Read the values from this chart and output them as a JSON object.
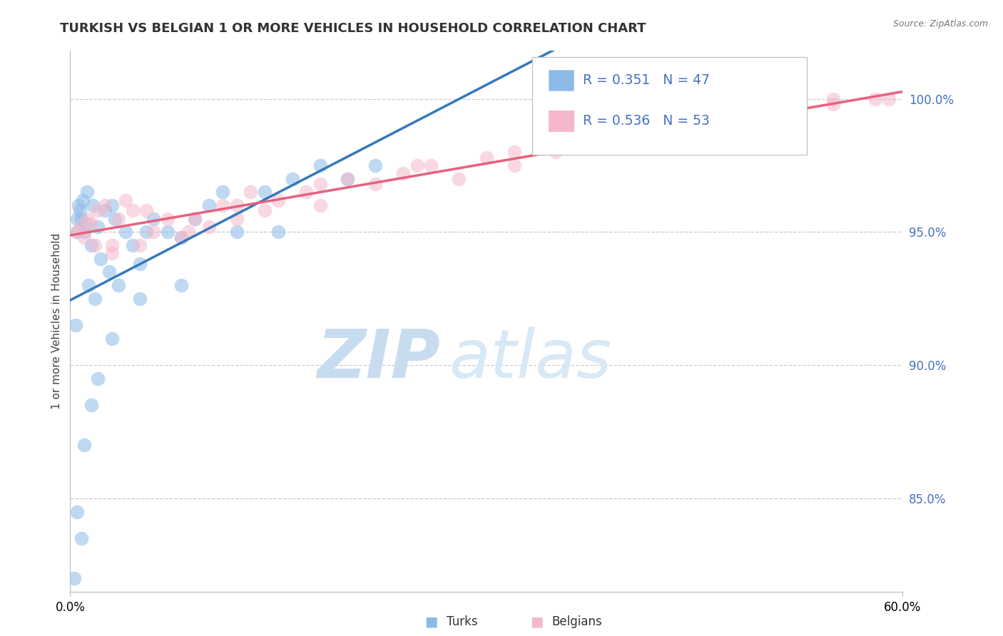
{
  "title": "TURKISH VS BELGIAN 1 OR MORE VEHICLES IN HOUSEHOLD CORRELATION CHART",
  "source": "Source: ZipAtlas.com",
  "ylabel": "1 or more Vehicles in Household",
  "xlim": [
    0.0,
    60.0
  ],
  "ylim": [
    81.5,
    101.8
  ],
  "yticks": [
    85.0,
    90.0,
    95.0,
    100.0
  ],
  "ytick_labels": [
    "85.0%",
    "90.0%",
    "95.0%",
    "100.0%"
  ],
  "legend_blue_r": "R = 0.351",
  "legend_blue_n": "N = 47",
  "legend_pink_r": "R = 0.536",
  "legend_pink_n": "N = 53",
  "turks_label": "Turks",
  "belgians_label": "Belgians",
  "blue_scatter_color": "#8DBBE8",
  "pink_scatter_color": "#F5B8CB",
  "line_blue": "#3579BD",
  "line_pink": "#E8617C",
  "legend_text_color": "#4472C4",
  "title_color": "#333333",
  "source_color": "#777777",
  "watermark_color": "#D8E8F5",
  "yaxis_tick_color": "#4472C4",
  "turks_x": [
    0.3,
    0.4,
    0.5,
    0.5,
    0.6,
    0.7,
    0.8,
    0.9,
    1.0,
    1.1,
    1.2,
    1.3,
    1.5,
    1.6,
    1.8,
    2.0,
    2.2,
    2.5,
    2.8,
    3.0,
    3.2,
    3.5,
    4.0,
    4.5,
    5.0,
    5.5,
    6.0,
    7.0,
    8.0,
    9.0,
    10.0,
    11.0,
    12.0,
    14.0,
    16.0,
    18.0,
    20.0,
    22.0,
    0.5,
    0.8,
    1.0,
    1.5,
    2.0,
    3.0,
    5.0,
    8.0,
    15.0
  ],
  "turks_y": [
    82.0,
    91.5,
    95.0,
    95.5,
    96.0,
    95.8,
    95.5,
    96.2,
    95.0,
    95.3,
    96.5,
    93.0,
    94.5,
    96.0,
    92.5,
    95.2,
    94.0,
    95.8,
    93.5,
    96.0,
    95.5,
    93.0,
    95.0,
    94.5,
    93.8,
    95.0,
    95.5,
    95.0,
    94.8,
    95.5,
    96.0,
    96.5,
    95.0,
    96.5,
    97.0,
    97.5,
    97.0,
    97.5,
    84.5,
    83.5,
    87.0,
    88.5,
    89.5,
    91.0,
    92.5,
    93.0,
    95.0
  ],
  "belgians_x": [
    0.5,
    0.8,
    1.0,
    1.2,
    1.5,
    1.8,
    2.0,
    2.5,
    3.0,
    3.5,
    4.0,
    4.5,
    5.0,
    6.0,
    7.0,
    8.0,
    9.0,
    10.0,
    11.0,
    12.0,
    13.0,
    14.0,
    15.0,
    17.0,
    18.0,
    20.0,
    22.0,
    24.0,
    26.0,
    28.0,
    30.0,
    32.0,
    35.0,
    38.0,
    40.0,
    42.0,
    45.0,
    48.0,
    50.0,
    52.0,
    55.0,
    58.0,
    3.0,
    5.5,
    8.5,
    12.0,
    18.0,
    25.0,
    32.0,
    40.0,
    47.0,
    55.0,
    59.0
  ],
  "belgians_y": [
    95.0,
    95.2,
    94.8,
    95.5,
    95.3,
    94.5,
    95.8,
    96.0,
    94.2,
    95.5,
    96.2,
    95.8,
    94.5,
    95.0,
    95.5,
    94.8,
    95.5,
    95.2,
    96.0,
    95.5,
    96.5,
    95.8,
    96.2,
    96.5,
    96.0,
    97.0,
    96.8,
    97.2,
    97.5,
    97.0,
    97.8,
    97.5,
    98.0,
    98.5,
    98.2,
    98.8,
    99.0,
    99.5,
    99.2,
    99.5,
    100.0,
    100.0,
    94.5,
    95.8,
    95.0,
    96.0,
    96.8,
    97.5,
    98.0,
    98.5,
    99.0,
    99.8,
    100.0
  ]
}
